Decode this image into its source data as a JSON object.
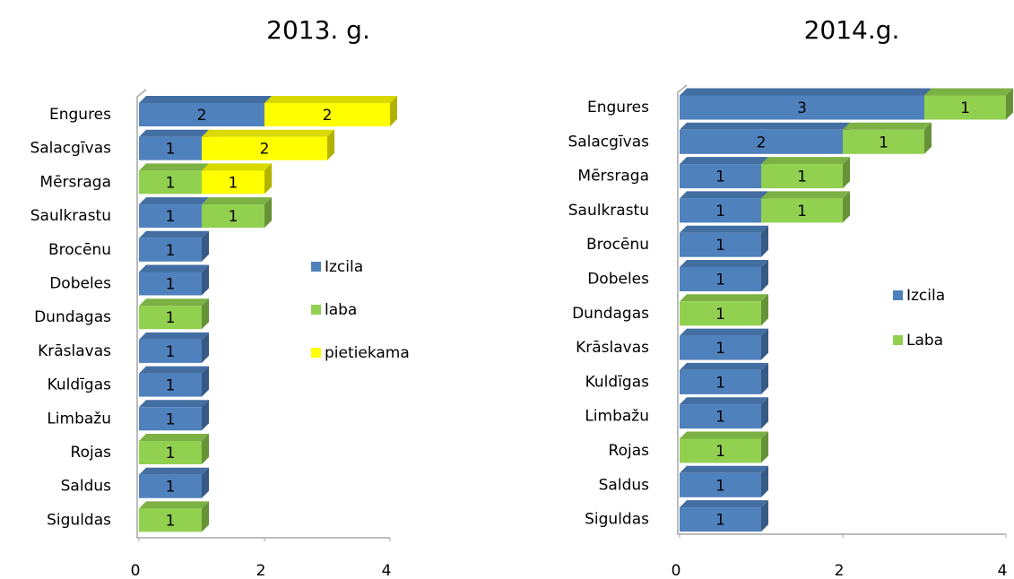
{
  "chart_data": [
    {
      "type": "bar",
      "orientation": "horizontal",
      "stacked": true,
      "title": "2013. g.",
      "categories": [
        "Engures",
        "Salacgīvas",
        "Mērsraga",
        "Saulkrastu",
        "Brocēnu",
        "Dobeles",
        "Dundagas",
        "Krāslavas",
        "Kuldīgas",
        "Limbažu",
        "Rojas",
        "Saldus",
        "Siguldas"
      ],
      "series": [
        {
          "name": "Izcila",
          "color": "#4f81bd",
          "values": [
            2,
            1,
            null,
            1,
            1,
            1,
            null,
            1,
            1,
            1,
            null,
            1,
            null
          ]
        },
        {
          "name": "laba",
          "color": "#92d050",
          "values": [
            null,
            null,
            1,
            1,
            null,
            null,
            1,
            null,
            null,
            null,
            1,
            null,
            1
          ]
        },
        {
          "name": "pietiekama",
          "color": "#ffff00",
          "values": [
            2,
            2,
            1,
            null,
            null,
            null,
            null,
            null,
            null,
            null,
            null,
            null,
            null
          ]
        }
      ],
      "xlim": [
        0,
        4
      ],
      "xticks": [
        0,
        2,
        4
      ],
      "legend": "right"
    },
    {
      "type": "bar",
      "orientation": "horizontal",
      "stacked": true,
      "title": "2014.g.",
      "categories": [
        "Engures",
        "Salacgīvas",
        "Mērsraga",
        "Saulkrastu",
        "Brocēnu",
        "Dobeles",
        "Dundagas",
        "Krāslavas",
        "Kuldīgas",
        "Limbažu",
        "Rojas",
        "Saldus",
        "Siguldas"
      ],
      "series": [
        {
          "name": "Izcila",
          "color": "#4f81bd",
          "values": [
            3,
            2,
            1,
            1,
            1,
            1,
            null,
            1,
            1,
            1,
            null,
            1,
            1
          ]
        },
        {
          "name": "Laba",
          "color": "#92d050",
          "values": [
            1,
            1,
            1,
            1,
            null,
            null,
            1,
            null,
            null,
            null,
            1,
            null,
            null
          ]
        }
      ],
      "xlim": [
        0,
        4
      ],
      "xticks": [
        0,
        2,
        4
      ],
      "legend": "right"
    }
  ]
}
